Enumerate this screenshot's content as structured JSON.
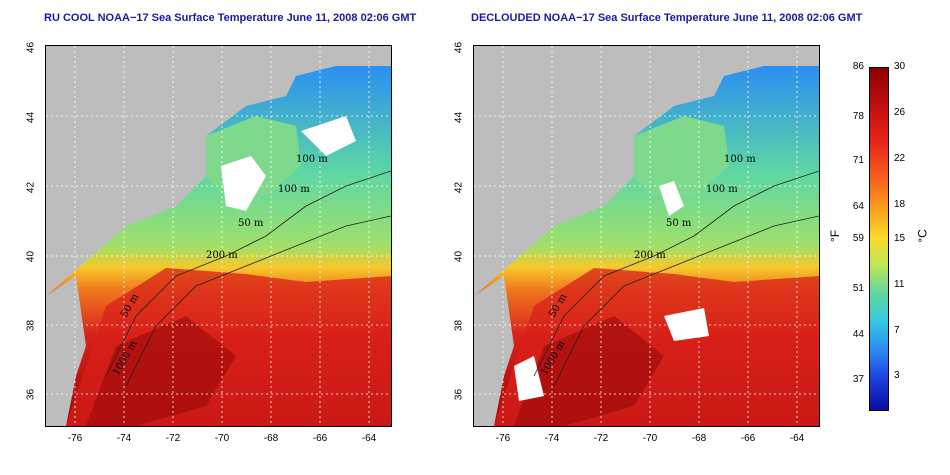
{
  "titles": {
    "left": "RU COOL NOAA−17 Sea Surface Temperature June 11, 2008 02:06 GMT",
    "right": "DECLOUDED NOAA−17 Sea Surface Temperature June 11, 2008 02:06 GMT"
  },
  "axes": {
    "lat_ticks": [
      "46",
      "44",
      "42",
      "40",
      "38",
      "36"
    ],
    "lon_ticks": [
      "-76",
      "-74",
      "-72",
      "-70",
      "-68",
      "-66",
      "-64"
    ]
  },
  "isobath_labels": [
    "100 m",
    "100 m",
    "50 m",
    "200 m",
    "50 m",
    "1000 m"
  ],
  "colorbar": {
    "fahrenheit_ticks": [
      "86",
      "78",
      "71",
      "64",
      "59",
      "51",
      "44",
      "37"
    ],
    "celsius_ticks": [
      "30",
      "26",
      "22",
      "18",
      "15",
      "11",
      "7",
      "3"
    ],
    "fahrenheit_unit": "°F",
    "celsius_unit": "°C",
    "colors": [
      "#8b0000",
      "#e8261a",
      "#f9a51f",
      "#f7dc2a",
      "#5fd7a2",
      "#36c8e0",
      "#2a8ff2",
      "#0c0aa0"
    ]
  }
}
